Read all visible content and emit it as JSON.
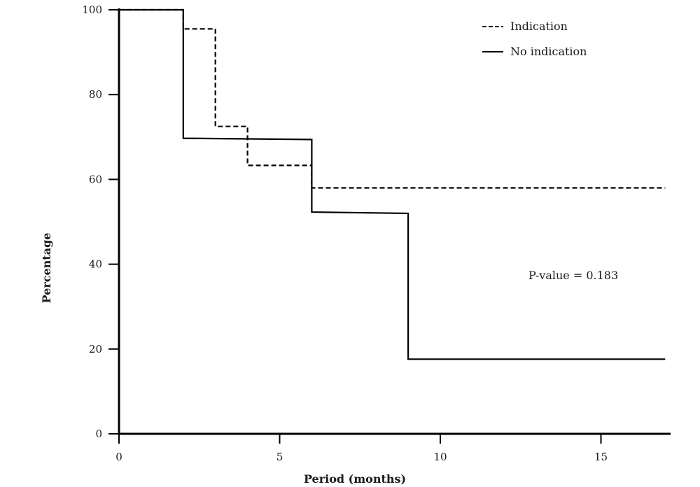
{
  "chart_data": {
    "type": "line",
    "title": "",
    "xlabel": "Period (months)",
    "ylabel": "Percentage",
    "xlim": [
      0,
      17
    ],
    "ylim": [
      0,
      100
    ],
    "xticks": [
      0,
      5,
      10,
      15
    ],
    "yticks": [
      0,
      20,
      40,
      60,
      80,
      100
    ],
    "grid": false,
    "legend_position": "top-right",
    "step": true,
    "series": [
      {
        "name": "Indication",
        "style": "dashed",
        "points": [
          [
            0,
            100
          ],
          [
            2,
            100
          ],
          [
            2,
            95.5
          ],
          [
            3,
            95.5
          ],
          [
            3,
            72.5
          ],
          [
            4,
            72.5
          ],
          [
            4,
            63.3
          ],
          [
            6,
            63.3
          ],
          [
            6,
            58
          ],
          [
            17,
            58
          ]
        ]
      },
      {
        "name": "No indication",
        "style": "solid",
        "points": [
          [
            0,
            100
          ],
          [
            2,
            100
          ],
          [
            2,
            69.7
          ],
          [
            6,
            69.4
          ],
          [
            6,
            52.3
          ],
          [
            9,
            52
          ],
          [
            9,
            17.6
          ],
          [
            17,
            17.6
          ]
        ]
      }
    ],
    "annotations": [
      {
        "text": "P-value = 0.183",
        "x": 12.5,
        "y": 37.5
      }
    ]
  }
}
